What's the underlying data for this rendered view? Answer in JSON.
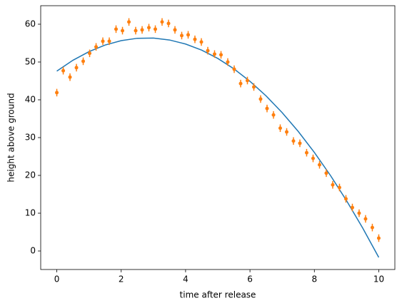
{
  "chart_data": {
    "type": "line",
    "xlabel": "time after release",
    "ylabel": "height above ground",
    "xlim": [
      -0.5,
      10.5
    ],
    "ylim": [
      -4.9,
      64.9
    ],
    "xticks": [
      0,
      2,
      4,
      6,
      8,
      10
    ],
    "yticks": [
      0,
      10,
      20,
      30,
      40,
      50,
      60
    ],
    "series": [
      {
        "type": "line",
        "color": "#1f77b4",
        "x": [
          0,
          0.5,
          1,
          1.5,
          2,
          2.5,
          3,
          3.5,
          4,
          4.5,
          5,
          5.5,
          6,
          6.5,
          7,
          7.5,
          8,
          8.5,
          9,
          9.5,
          10
        ],
        "values": [
          47.6,
          50.46,
          52.75,
          54.49,
          55.66,
          56.28,
          56.33,
          55.83,
          54.76,
          53.14,
          50.95,
          48.21,
          44.9,
          41.04,
          36.61,
          31.63,
          26.08,
          19.98,
          13.31,
          6.09,
          -1.7
        ]
      },
      {
        "type": "errorbar",
        "color": "#ff7f0e",
        "x": [
          0,
          0.2,
          0.41,
          0.61,
          0.82,
          1.02,
          1.22,
          1.43,
          1.63,
          1.84,
          2.04,
          2.24,
          2.45,
          2.65,
          2.86,
          3.06,
          3.27,
          3.47,
          3.67,
          3.88,
          4.08,
          4.29,
          4.49,
          4.69,
          4.9,
          5.1,
          5.31,
          5.51,
          5.71,
          5.92,
          6.12,
          6.33,
          6.53,
          6.73,
          6.94,
          7.14,
          7.35,
          7.55,
          7.76,
          7.96,
          8.16,
          8.37,
          8.57,
          8.78,
          8.98,
          9.18,
          9.39,
          9.59,
          9.8,
          10
        ],
        "values": [
          41.9,
          47.7,
          46.0,
          48.5,
          50.2,
          52.3,
          54.0,
          55.5,
          55.5,
          58.7,
          58.3,
          60.6,
          58.3,
          58.5,
          59.1,
          58.7,
          60.6,
          60.2,
          58.5,
          57.0,
          57.2,
          56.0,
          55.3,
          53.0,
          52.1,
          51.9,
          50.0,
          48.1,
          44.3,
          45.1,
          43.4,
          40.2,
          37.7,
          36.0,
          32.5,
          31.5,
          29.1,
          28.5,
          26.0,
          24.5,
          22.8,
          20.6,
          17.5,
          16.8,
          13.8,
          11.5,
          10.0,
          8.5,
          6.2,
          3.4
        ],
        "errors": [
          1,
          1,
          1,
          1,
          1,
          1,
          1,
          1,
          1,
          1,
          1,
          1,
          1,
          1,
          1,
          1,
          1,
          1,
          1,
          1,
          1,
          1,
          1,
          1,
          1,
          1,
          1,
          1,
          1,
          1,
          1,
          1,
          1,
          1,
          1,
          1,
          1,
          1,
          1,
          1,
          1,
          1,
          1,
          1,
          1,
          1,
          1,
          1,
          1,
          1
        ]
      }
    ]
  }
}
